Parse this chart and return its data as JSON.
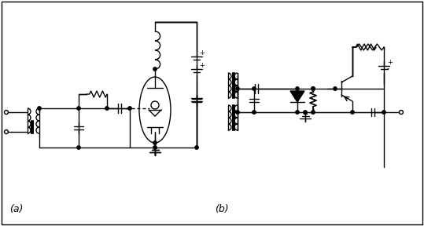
{
  "fig_width": 5.39,
  "fig_height": 2.88,
  "dpi": 100,
  "bg_color": "#ffffff",
  "border_color": "#000000",
  "line_color": "#000000",
  "gray_color": "#999999",
  "label_a": "(a)",
  "label_b": "(b)",
  "label_fontsize": 9
}
